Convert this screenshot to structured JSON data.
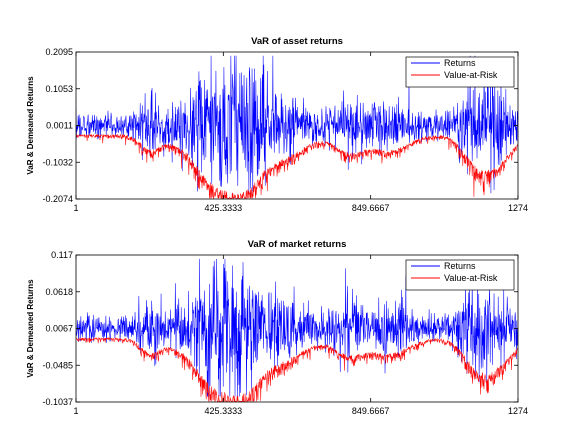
{
  "chart_data": [
    {
      "type": "line",
      "title": "VaR of asset returns",
      "xlabel": "",
      "ylabel": "VaR & Demeaned Returns",
      "xlim": [
        1,
        1274
      ],
      "ylim": [
        -0.2074,
        0.2095
      ],
      "x_ticks": [
        "1",
        "425.3333",
        "849.6667",
        "1274"
      ],
      "y_ticks": [
        "0.2095",
        "0.1053",
        "0.0011",
        "-0.1032",
        "-0.2074"
      ],
      "grid": false,
      "legend_position": "top-right",
      "n_points": 1274,
      "series": [
        {
          "name": "Returns",
          "color": "#0000ff",
          "approx_range": [
            -0.19,
            0.19
          ],
          "mean": 0.0011
        },
        {
          "name": "Value-at-Risk",
          "color": "#ff0000",
          "approx_range": [
            -0.17,
            -0.03
          ]
        }
      ]
    },
    {
      "type": "line",
      "title": "VaR of market returns",
      "xlabel": "",
      "ylabel": "VaR & Demeaned Returns",
      "xlim": [
        1,
        1274
      ],
      "ylim": [
        -0.1037,
        0.117
      ],
      "x_ticks": [
        "1",
        "425.3333",
        "849.6667",
        "1274"
      ],
      "y_ticks": [
        "0.117",
        "0.0618",
        "0.0067",
        "-0.0485",
        "-0.1037"
      ],
      "grid": false,
      "legend_position": "top-right",
      "n_points": 1274,
      "series": [
        {
          "name": "Returns",
          "color": "#0000ff",
          "approx_range": [
            -0.1,
            0.11
          ],
          "mean": 0.0067
        },
        {
          "name": "Value-at-Risk",
          "color": "#ff0000",
          "approx_range": [
            -0.1,
            -0.02
          ]
        }
      ]
    }
  ]
}
